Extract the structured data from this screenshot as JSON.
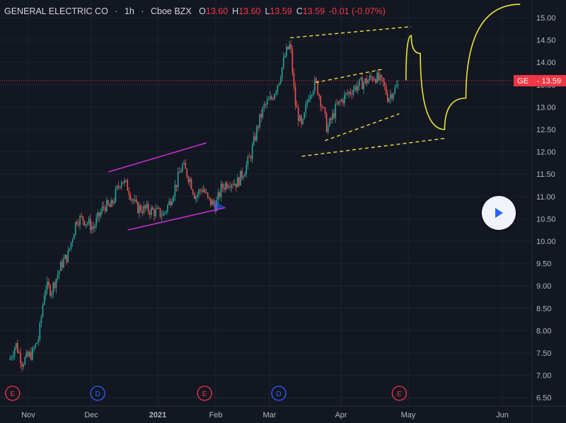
{
  "header": {
    "symbol": "GENERAL ELECTRIC CO",
    "dot": "·",
    "interval": "1h",
    "exchange": "Cboe BZX",
    "o_label": "O",
    "o_value": "13.60",
    "h_label": "H",
    "h_value": "13.60",
    "l_label": "L",
    "l_value": "13.59",
    "c_label": "C",
    "c_value": "13.59",
    "change": "-0.01 (-0.07%)"
  },
  "price_tag": {
    "ticker": "GE",
    "price": "13.59",
    "color": "#f23645"
  },
  "play_button": {
    "icon": "play-icon",
    "color": "#2962ff"
  },
  "colors": {
    "background": "#131722",
    "grid": "#1f2330",
    "up": "#26a69a",
    "down": "#ef5350",
    "channel_magenta": "#d52fe0",
    "channel_yellow": "#e6e63a",
    "projection": "#e6e63a",
    "event_earnings": "#f23645",
    "event_dividend": "#2962ff"
  },
  "chart_data": {
    "type": "candlestick",
    "symbol": "GE",
    "y_axis": {
      "ticks": [
        "15.00",
        "14.50",
        "14.00",
        "13.50",
        "13.00",
        "12.50",
        "12.00",
        "11.50",
        "11.00",
        "10.50",
        "10.00",
        "9.50",
        "9.00",
        "8.50",
        "8.00",
        "7.50",
        "7.00",
        "6.50"
      ],
      "range": [
        6.4,
        15.2
      ]
    },
    "x_axis": {
      "ticks": [
        "Nov",
        "Dec",
        "2021",
        "Feb",
        "Mar",
        "Apr",
        "May",
        "Jun"
      ]
    },
    "last_price": 13.59,
    "price_path": [
      [
        "2020-10-26",
        7.35
      ],
      [
        "2020-10-28",
        7.7
      ],
      [
        "2020-10-30",
        7.3
      ],
      [
        "2020-11-03",
        7.5
      ],
      [
        "2020-11-06",
        7.85
      ],
      [
        "2020-11-09",
        9.0
      ],
      [
        "2020-11-12",
        8.9
      ],
      [
        "2020-11-17",
        9.5
      ],
      [
        "2020-11-20",
        9.7
      ],
      [
        "2020-11-24",
        10.5
      ],
      [
        "2020-11-27",
        10.5
      ],
      [
        "2020-12-02",
        10.3
      ],
      [
        "2020-12-07",
        10.8
      ],
      [
        "2020-12-10",
        10.75
      ],
      [
        "2020-12-15",
        11.4
      ],
      [
        "2020-12-18",
        11.2
      ],
      [
        "2020-12-22",
        10.75
      ],
      [
        "2020-12-28",
        10.7
      ],
      [
        "2021-01-04",
        10.6
      ],
      [
        "2021-01-07",
        10.85
      ],
      [
        "2021-01-11",
        11.3
      ],
      [
        "2021-01-14",
        11.7
      ],
      [
        "2021-01-18",
        11.4
      ],
      [
        "2021-01-21",
        11.0
      ],
      [
        "2021-01-25",
        11.2
      ],
      [
        "2021-01-28",
        10.9
      ],
      [
        "2021-02-01",
        10.8
      ],
      [
        "2021-02-04",
        11.2
      ],
      [
        "2021-02-08",
        11.35
      ],
      [
        "2021-02-12",
        11.3
      ],
      [
        "2021-02-16",
        11.6
      ],
      [
        "2021-02-19",
        11.9
      ],
      [
        "2021-02-23",
        12.6
      ],
      [
        "2021-02-26",
        13.0
      ],
      [
        "2021-03-02",
        13.2
      ],
      [
        "2021-03-05",
        13.6
      ],
      [
        "2021-03-08",
        14.2
      ],
      [
        "2021-03-10",
        14.4
      ],
      [
        "2021-03-12",
        13.1
      ],
      [
        "2021-03-15",
        12.5
      ],
      [
        "2021-03-18",
        13.3
      ],
      [
        "2021-03-21",
        13.55
      ],
      [
        "2021-03-24",
        13.0
      ],
      [
        "2021-03-26",
        12.5
      ],
      [
        "2021-03-30",
        13.0
      ],
      [
        "2021-04-02",
        13.2
      ],
      [
        "2021-04-06",
        13.4
      ],
      [
        "2021-04-09",
        13.5
      ],
      [
        "2021-04-13",
        13.6
      ],
      [
        "2021-04-16",
        13.7
      ],
      [
        "2021-04-20",
        13.5
      ],
      [
        "2021-04-22",
        13.2
      ],
      [
        "2021-04-24",
        13.35
      ],
      [
        "2021-04-27",
        13.5
      ]
    ],
    "drawings": [
      {
        "kind": "channel-line",
        "color": "magenta",
        "p1": [
          "2020-12-09",
          11.55
        ],
        "p2": [
          "2021-01-27",
          12.2
        ]
      },
      {
        "kind": "channel-line",
        "color": "magenta",
        "p1": [
          "2020-12-18",
          10.25
        ],
        "p2": [
          "2021-02-06",
          10.75
        ]
      },
      {
        "kind": "dashed-line",
        "color": "yellow",
        "p1": [
          "2021-03-10",
          14.55
        ],
        "p2": [
          "2021-05-02",
          14.8
        ]
      },
      {
        "kind": "dashed-line",
        "color": "yellow",
        "p1": [
          "2021-03-15",
          11.9
        ],
        "p2": [
          "2021-05-13",
          12.3
        ]
      },
      {
        "kind": "dashed-line",
        "color": "yellow",
        "p1": [
          "2021-03-21",
          13.55
        ],
        "p2": [
          "2021-04-20",
          13.85
        ]
      },
      {
        "kind": "dashed-line",
        "color": "yellow",
        "p1": [
          "2021-03-25",
          12.25
        ],
        "p2": [
          "2021-04-27",
          12.85
        ]
      },
      {
        "kind": "projection",
        "color": "yellow",
        "points": [
          [
            "2021-04-30",
            13.6
          ],
          [
            "2021-05-02",
            14.6
          ],
          [
            "2021-05-05",
            14.2
          ],
          [
            "2021-05-13",
            12.5
          ],
          [
            "2021-05-20",
            13.2
          ],
          [
            "2021-06-07",
            15.3
          ]
        ]
      }
    ],
    "events": [
      {
        "date": "2020-10-27",
        "type": "E"
      },
      {
        "date": "2020-12-04",
        "type": "D"
      },
      {
        "date": "2021-01-26",
        "type": "E"
      },
      {
        "date": "2021-03-05",
        "type": "D"
      },
      {
        "date": "2021-04-27",
        "type": "E"
      }
    ]
  }
}
